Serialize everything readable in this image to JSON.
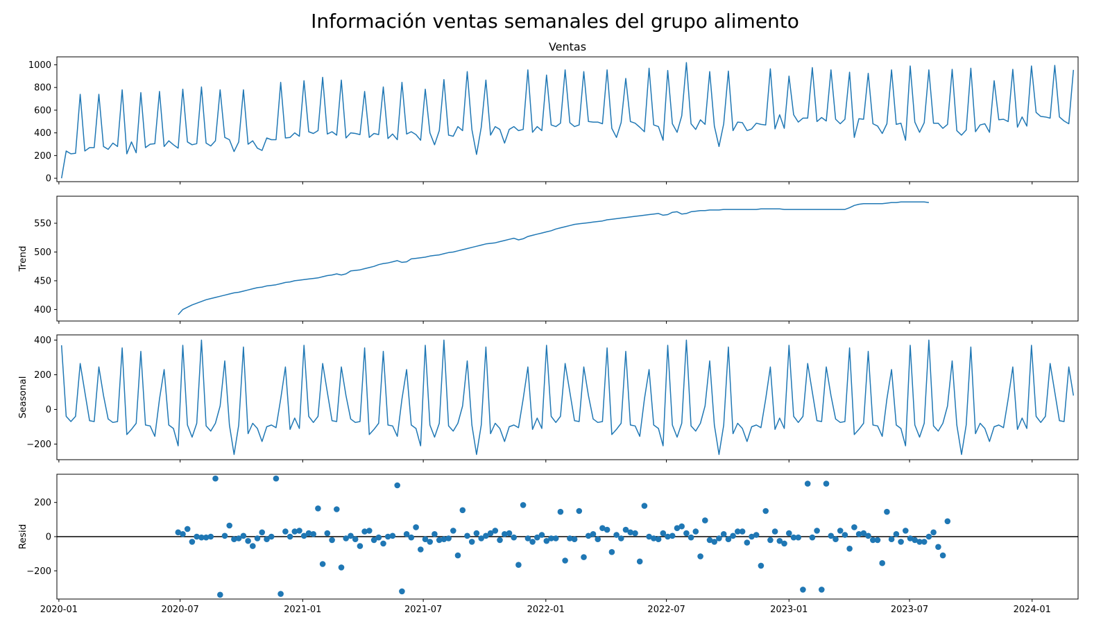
{
  "figure": {
    "suptitle": "Información ventas semanales del grupo alimento"
  },
  "colors": {
    "series": "#1f77b4",
    "axis": "#000000",
    "zero_line": "#000000"
  },
  "chart_data": [
    {
      "id": "ventas",
      "type": "line",
      "title": "Ventas",
      "ylabel": "",
      "ylim": [
        -30,
        1070
      ],
      "yticks": [
        0,
        200,
        400,
        600,
        800,
        1000
      ],
      "xlim": [
        "2019-12-29",
        "2024-03-10"
      ],
      "x_ticks": [
        "2020-01",
        "2020-07",
        "2021-01",
        "2021-07",
        "2022-01",
        "2022-07",
        "2023-01",
        "2023-07",
        "2024-01"
      ],
      "show_x_tick_labels": false,
      "series": [
        {
          "x_start": "2020-01-05",
          "x_step_days": 7,
          "values": [
            0,
            240,
            215,
            220,
            740,
            240,
            270,
            270,
            740,
            280,
            255,
            310,
            280,
            780,
            215,
            320,
            225,
            755,
            270,
            300,
            305,
            765,
            280,
            330,
            295,
            265,
            785,
            320,
            295,
            305,
            805,
            310,
            285,
            330,
            780,
            360,
            340,
            235,
            320,
            780,
            300,
            330,
            265,
            245,
            355,
            340,
            340,
            845,
            355,
            360,
            400,
            370,
            860,
            410,
            395,
            420,
            890,
            390,
            410,
            380,
            865,
            355,
            400,
            395,
            385,
            765,
            360,
            395,
            385,
            805,
            350,
            390,
            340,
            845,
            390,
            410,
            385,
            335,
            785,
            400,
            295,
            420,
            870,
            380,
            370,
            455,
            420,
            940,
            430,
            210,
            450,
            865,
            380,
            455,
            430,
            310,
            430,
            455,
            420,
            430,
            955,
            405,
            455,
            420,
            910,
            470,
            455,
            485,
            955,
            490,
            455,
            470,
            940,
            500,
            495,
            495,
            480,
            955,
            440,
            360,
            490,
            880,
            500,
            485,
            450,
            410,
            970,
            470,
            455,
            335,
            950,
            480,
            405,
            550,
            1020,
            480,
            430,
            515,
            475,
            940,
            460,
            280,
            480,
            945,
            420,
            495,
            490,
            420,
            435,
            485,
            475,
            470,
            965,
            435,
            560,
            440,
            900,
            560,
            495,
            530,
            530,
            975,
            500,
            535,
            505,
            955,
            520,
            480,
            520,
            935,
            360,
            525,
            520,
            925,
            480,
            460,
            395,
            480,
            955,
            475,
            485,
            335,
            990,
            495,
            405,
            490,
            955,
            485,
            485,
            440,
            475,
            960,
            420,
            380,
            425,
            970,
            410,
            470,
            480,
            405,
            860,
            515,
            520,
            500,
            960,
            450,
            540,
            460,
            990,
            580,
            545,
            540,
            530,
            995,
            540,
            505,
            480,
            955
          ]
        }
      ]
    },
    {
      "id": "trend",
      "type": "line",
      "title": "",
      "ylabel": "Trend",
      "ylim": [
        380,
        597
      ],
      "yticks": [
        400,
        450,
        500,
        550
      ],
      "xlim": [
        "2019-12-29",
        "2024-03-10"
      ],
      "x_ticks": [
        "2020-01",
        "2020-07",
        "2021-01",
        "2021-07",
        "2022-01",
        "2022-07",
        "2023-01",
        "2023-07",
        "2024-01"
      ],
      "show_x_tick_labels": false,
      "series": [
        {
          "x_start": "2020-06-28",
          "x_step_days": 7,
          "values": [
            391,
            400,
            404,
            408,
            411,
            414,
            417,
            419,
            421,
            423,
            425,
            427,
            429,
            430,
            432,
            434,
            436,
            438,
            439,
            441,
            442,
            443,
            445,
            447,
            448,
            450,
            451,
            452,
            453,
            454,
            455,
            457,
            459,
            460,
            462,
            460,
            462,
            467,
            468,
            469,
            471,
            473,
            475,
            478,
            480,
            481,
            483,
            485,
            482,
            483,
            488,
            489,
            490,
            491,
            493,
            494,
            495,
            497,
            499,
            500,
            502,
            504,
            506,
            508,
            510,
            512,
            514,
            515,
            516,
            518,
            520,
            522,
            524,
            521,
            523,
            527,
            529,
            531,
            533,
            535,
            537,
            540,
            542,
            544,
            546,
            548,
            549,
            550,
            551,
            552,
            553,
            554,
            556,
            557,
            558,
            559,
            560,
            561,
            562,
            563,
            564,
            565,
            566,
            567,
            564,
            565,
            569,
            570,
            566,
            567,
            570,
            571,
            572,
            572,
            573,
            573,
            573,
            574,
            574,
            574,
            574,
            574,
            574,
            574,
            574,
            575,
            575,
            575,
            575,
            575,
            574,
            574,
            574,
            574,
            574,
            574,
            574,
            574,
            574,
            574,
            574,
            574,
            574,
            574,
            577,
            581,
            583,
            584,
            584,
            584,
            584,
            584,
            585,
            586,
            586,
            587,
            587,
            587,
            587,
            587,
            587,
            586
          ]
        }
      ]
    },
    {
      "id": "seasonal",
      "type": "line",
      "title": "",
      "ylabel": "Seasonal",
      "ylim": [
        -290,
        430
      ],
      "yticks": [
        -200,
        0,
        200,
        400
      ],
      "xlim": [
        "2019-12-29",
        "2024-03-10"
      ],
      "x_ticks": [
        "2020-01",
        "2020-07",
        "2021-01",
        "2021-07",
        "2022-01",
        "2022-07",
        "2023-01",
        "2023-07",
        "2024-01"
      ],
      "show_x_tick_labels": false,
      "series": [
        {
          "x_start": "2020-01-05",
          "x_step_days": 7,
          "values": [
            370,
            -40,
            -70,
            -40,
            265,
            100,
            -65,
            -70,
            245,
            80,
            -55,
            -75,
            -70,
            355,
            -145,
            -115,
            -80,
            335,
            -90,
            -95,
            -155,
            60,
            230,
            -90,
            -110,
            -210,
            370,
            -90,
            -160,
            -80,
            400,
            -95,
            -125,
            -80,
            20,
            280,
            -90,
            -260,
            -90,
            360,
            -140,
            -80,
            -110,
            -185,
            -100,
            -90,
            -105,
            60,
            245,
            -115,
            -50,
            -110,
            370,
            -40,
            -75,
            -40,
            265,
            100,
            -65,
            -70,
            245,
            80,
            -55,
            -75,
            -70,
            355,
            -145,
            -115,
            -80,
            335,
            -90,
            -95,
            -155,
            60,
            230,
            -90,
            -110,
            -210,
            370,
            -90,
            -160,
            -80,
            400,
            -95,
            -125,
            -80,
            20,
            280,
            -90,
            -260,
            -90,
            360,
            -140,
            -80,
            -110,
            -185,
            -100,
            -90,
            -105,
            60,
            245,
            -115,
            -50,
            -110,
            370,
            -40,
            -75,
            -40,
            265,
            100,
            -65,
            -70,
            245,
            80,
            -55,
            -75,
            -70,
            355,
            -145,
            -115,
            -80,
            335,
            -90,
            -95,
            -155,
            60,
            230,
            -90,
            -110,
            -210,
            370,
            -90,
            -160,
            -80,
            400,
            -95,
            -125,
            -80,
            20,
            280,
            -90,
            -260,
            -90,
            360,
            -140,
            -80,
            -110,
            -185,
            -100,
            -90,
            -105,
            60,
            245,
            -115,
            -50,
            -110,
            370,
            -40,
            -75,
            -40,
            265,
            100,
            -65,
            -70,
            245,
            80,
            -55,
            -75,
            -70,
            355,
            -145,
            -115,
            -80,
            335,
            -90,
            -95,
            -155,
            60,
            230,
            -90,
            -110,
            -210,
            370,
            -90,
            -160,
            -80,
            400,
            -95,
            -125,
            -80,
            20,
            280,
            -90,
            -260,
            -90,
            360,
            -140,
            -80,
            -110,
            -185,
            -100,
            -90,
            -105,
            60,
            245,
            -115,
            -50,
            -110,
            370,
            -40,
            -75,
            -40,
            265,
            100,
            -65,
            -70,
            245,
            80
          ]
        }
      ]
    },
    {
      "id": "resid",
      "type": "scatter",
      "title": "",
      "ylabel": "Resid",
      "ylim": [
        -365,
        365
      ],
      "yticks": [
        -200,
        0,
        200
      ],
      "zero_line": true,
      "xlim": [
        "2019-12-29",
        "2024-03-10"
      ],
      "x_ticks": [
        "2020-01",
        "2020-07",
        "2021-01",
        "2021-07",
        "2022-01",
        "2022-07",
        "2023-01",
        "2023-07",
        "2024-01"
      ],
      "show_x_tick_labels": true,
      "series": [
        {
          "x_start": "2020-06-28",
          "x_step_days": 7,
          "values": [
            25,
            15,
            45,
            -30,
            0,
            -5,
            -5,
            0,
            340,
            -340,
            5,
            65,
            -15,
            -10,
            5,
            -25,
            -55,
            -10,
            25,
            -15,
            0,
            340,
            -335,
            30,
            0,
            30,
            35,
            5,
            20,
            15,
            165,
            -160,
            20,
            -20,
            160,
            -180,
            -10,
            5,
            -15,
            -55,
            30,
            35,
            -20,
            -5,
            -40,
            0,
            5,
            300,
            -320,
            15,
            -5,
            55,
            -75,
            -15,
            -30,
            15,
            -20,
            -15,
            -10,
            35,
            -110,
            155,
            5,
            -30,
            20,
            -10,
            5,
            20,
            35,
            -20,
            15,
            20,
            -5,
            -165,
            185,
            -10,
            -30,
            -5,
            10,
            -25,
            -10,
            -10,
            145,
            -140,
            -10,
            -15,
            150,
            -120,
            5,
            15,
            -15,
            50,
            40,
            -90,
            10,
            -10,
            40,
            25,
            20,
            -145,
            180,
            0,
            -10,
            -15,
            20,
            0,
            5,
            50,
            60,
            20,
            -5,
            30,
            -115,
            95,
            -20,
            -30,
            -10,
            15,
            -15,
            5,
            30,
            30,
            -35,
            0,
            10,
            -170,
            150,
            -20,
            30,
            -25,
            -40,
            20,
            -5,
            -5,
            -310,
            310,
            -5,
            35,
            -310,
            310,
            5,
            -15,
            35,
            10,
            -70,
            55,
            15,
            20,
            5,
            -20,
            -20,
            -155,
            145,
            -15,
            15,
            -30,
            35,
            -10,
            -20,
            -30,
            -30,
            0,
            25,
            -60,
            -110,
            90
          ]
        }
      ]
    }
  ]
}
